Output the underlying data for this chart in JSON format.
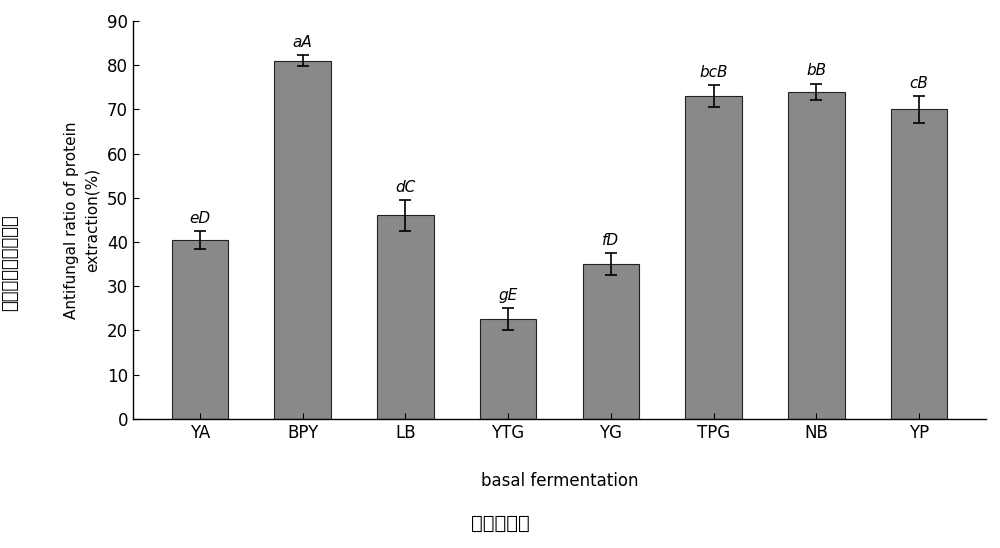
{
  "categories": [
    "YA",
    "BPY",
    "LB",
    "YTG",
    "YG",
    "TPG",
    "NB",
    "YP"
  ],
  "values": [
    40.5,
    81.0,
    46.0,
    22.5,
    35.0,
    73.0,
    74.0,
    70.0
  ],
  "errors": [
    2.0,
    1.2,
    3.5,
    2.5,
    2.5,
    2.5,
    1.8,
    3.0
  ],
  "sig_labels": [
    "eD",
    "aA",
    "dC",
    "gE",
    "fD",
    "bcB",
    "bB",
    "cB"
  ],
  "bar_color": "#898989",
  "bar_edgecolor": "#222222",
  "ylabel_chinese": "蛋白类提取物抑菌率",
  "ylabel_english": "Antifungal ratio of protein\nextraction(%)",
  "xlabel_chinese": "基础发酵液",
  "xlabel_english": "basal fermentation",
  "ylim": [
    0,
    90
  ],
  "yticks": [
    0,
    10,
    20,
    30,
    40,
    50,
    60,
    70,
    80,
    90
  ],
  "bar_width": 0.55,
  "fig_width": 10.0,
  "fig_height": 5.48,
  "dpi": 100
}
